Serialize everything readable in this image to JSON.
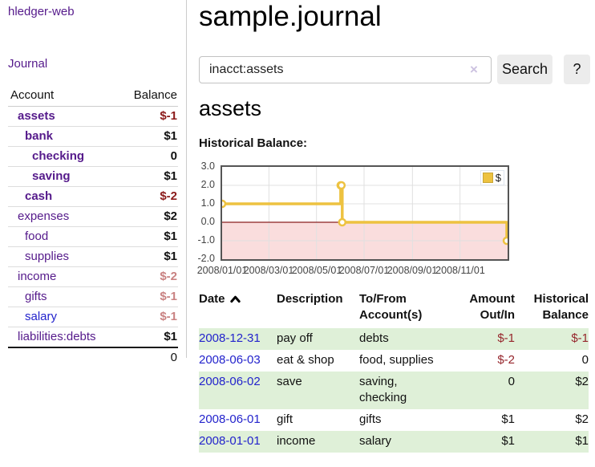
{
  "sidebar": {
    "app_title": "hledger-web",
    "journal_link": "Journal",
    "accounts": {
      "header_account": "Account",
      "header_balance": "Balance",
      "rows": [
        {
          "name": "assets",
          "balance": "$-1"
        },
        {
          "name": "bank",
          "balance": "$1"
        },
        {
          "name": "checking",
          "balance": "0"
        },
        {
          "name": "saving",
          "balance": "$1"
        },
        {
          "name": "cash",
          "balance": "$-2"
        },
        {
          "name": "expenses",
          "balance": "$2"
        },
        {
          "name": "food",
          "balance": "$1"
        },
        {
          "name": "supplies",
          "balance": "$1"
        },
        {
          "name": "income",
          "balance": "$-2"
        },
        {
          "name": "gifts",
          "balance": "$-1"
        },
        {
          "name": "salary",
          "balance": "$-1"
        },
        {
          "name": "liabilities:debts",
          "balance": "$1"
        }
      ],
      "total": "0"
    }
  },
  "main": {
    "title": "sample.journal",
    "search": {
      "value": "inacct:assets",
      "clear_icon": "×",
      "search_button": "Search",
      "help_button": "?"
    },
    "account_heading": "assets",
    "chart_title": "Historical Balance:"
  },
  "chart_data": {
    "type": "line",
    "step": true,
    "title": "Historical Balance:",
    "series": [
      {
        "name": "$",
        "color": "#EDC240",
        "points": [
          [
            "2008-01-01",
            1
          ],
          [
            "2008-06-01",
            2
          ],
          [
            "2008-06-02",
            2
          ],
          [
            "2008-06-03",
            0
          ],
          [
            "2008-12-31",
            -1
          ]
        ]
      }
    ],
    "xlim": [
      "2008-01-01",
      "2008-12-31"
    ],
    "ylim": [
      -2,
      3
    ],
    "yticks": [
      "3.0",
      "2.0",
      "1.0",
      "0.0",
      "-1.0",
      "-2.0"
    ],
    "ytick_values": [
      3,
      2,
      1,
      0,
      -1,
      -2
    ],
    "xticks": [
      "2008/01/01",
      "2008/03/01",
      "2008/05/01",
      "2008/07/01",
      "2008/09/01",
      "2008/11/01"
    ],
    "xtick_dates": [
      "2008-01-01",
      "2008-03-01",
      "2008-05-01",
      "2008-07-01",
      "2008-09-01",
      "2008-11-01"
    ],
    "grid": true,
    "legend": "$",
    "legend_position": "top-right",
    "negative_region_color": "#FADDDD",
    "zero_line_color": "#8B2020",
    "grid_color": "#E0E0E0"
  },
  "transactions": {
    "headers": {
      "date": "Date",
      "description": "Description",
      "account": "To/From Account(s)",
      "amount": "Amount Out/In",
      "balance": "Historical Balance"
    },
    "rows": [
      {
        "date": "2008-12-31",
        "description": "pay off",
        "account": "debts",
        "amount": "$-1",
        "balance": "$-1"
      },
      {
        "date": "2008-06-03",
        "description": "eat & shop",
        "account": "food, supplies",
        "amount": "$-2",
        "balance": "0"
      },
      {
        "date": "2008-06-02",
        "description": "save",
        "account": "saving, checking",
        "amount": "0",
        "balance": "$2"
      },
      {
        "date": "2008-06-01",
        "description": "gift",
        "account": "gifts",
        "amount": "$1",
        "balance": "$2"
      },
      {
        "date": "2008-01-01",
        "description": "income",
        "account": "salary",
        "amount": "$1",
        "balance": "$1"
      }
    ]
  }
}
